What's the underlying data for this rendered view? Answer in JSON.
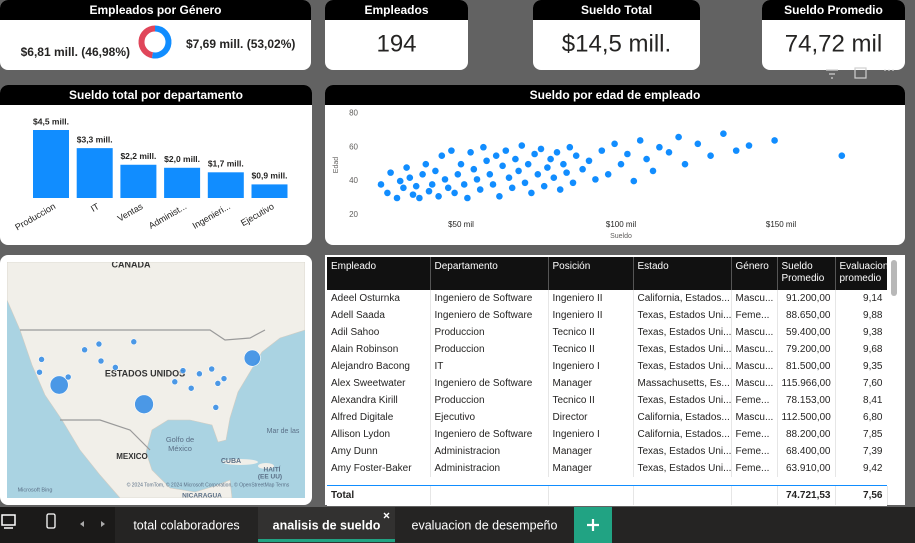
{
  "cards": [
    {
      "title": "Empleados",
      "value": "194"
    },
    {
      "title": "Sueldo Total",
      "value": "$14,5 mill."
    },
    {
      "title": "Sueldo Promedio",
      "value": "74,72 mil"
    }
  ],
  "chart_data": [
    {
      "type": "donut",
      "title": "Empleados por Género",
      "values": [
        6.81,
        7.69
      ],
      "value_labels": [
        "$6,81 mill. (46,98%)",
        "$7,69 mill. (53,02%)"
      ],
      "colors": [
        "#e0465a",
        "#118dff"
      ]
    },
    {
      "type": "bar",
      "title": "Sueldo total por departamento",
      "categories": [
        "Produccion",
        "IT",
        "Ventas",
        "Administ...",
        "Ingenieri...",
        "Ejecutivo"
      ],
      "values": [
        4.5,
        3.3,
        2.2,
        2.0,
        1.7,
        0.9
      ],
      "value_labels": [
        "$4,5 mill.",
        "$3,3 mill.",
        "$2,2 mill.",
        "$2,0 mill.",
        "$1,7 mill.",
        "$0,9 mill."
      ],
      "color": "#118dff"
    },
    {
      "type": "scatter",
      "title": "Sueldo por edad de empleado",
      "x_label": "Sueldo",
      "y_label": "Edad",
      "color": "#118dff",
      "x": [
        25000,
        27000,
        28000,
        30000,
        31000,
        32000,
        33000,
        34000,
        35000,
        36000,
        37000,
        38000,
        39000,
        40000,
        41000,
        42000,
        43000,
        44000,
        45000,
        46000,
        47000,
        48000,
        49000,
        50000,
        51000,
        52000,
        53000,
        54000,
        55000,
        56000,
        57000,
        58000,
        59000,
        60000,
        61000,
        62000,
        63000,
        64000,
        65000,
        66000,
        67000,
        68000,
        69000,
        70000,
        71000,
        72000,
        73000,
        74000,
        75000,
        76000,
        77000,
        78000,
        79000,
        80000,
        81000,
        82000,
        83000,
        84000,
        85000,
        86000,
        88000,
        90000,
        92000,
        94000,
        96000,
        98000,
        100000,
        102000,
        104000,
        106000,
        108000,
        110000,
        112000,
        115000,
        118000,
        120000,
        124000,
        128000,
        132000,
        136000,
        140000,
        148000,
        169000
      ],
      "values": [
        38,
        33,
        45,
        30,
        40,
        36,
        48,
        42,
        32,
        37,
        30,
        44,
        50,
        34,
        38,
        46,
        31,
        55,
        41,
        36,
        58,
        33,
        44,
        50,
        38,
        30,
        57,
        47,
        41,
        35,
        60,
        52,
        44,
        38,
        55,
        31,
        49,
        58,
        42,
        36,
        53,
        46,
        61,
        39,
        50,
        33,
        56,
        44,
        59,
        37,
        48,
        53,
        42,
        57,
        35,
        50,
        45,
        60,
        39,
        55,
        47,
        52,
        41,
        58,
        44,
        62,
        50,
        56,
        40,
        64,
        53,
        46,
        60,
        57,
        66,
        50,
        62,
        55,
        68,
        58,
        61,
        64,
        55
      ],
      "xlim": [
        20000,
        182500
      ],
      "ylim": [
        17,
        82
      ],
      "xticks": [
        {
          "value": 50000,
          "label": "$50 mil"
        },
        {
          "value": 100000,
          "label": "$100 mil"
        },
        {
          "value": 150000,
          "label": "$150 mil"
        }
      ],
      "yticks": [
        20,
        40,
        60,
        80
      ]
    }
  ],
  "map": {
    "color": "#3a8fe6",
    "labels": [
      "CANADA",
      "ESTADOS UNIDOS",
      "MEXICO",
      "Golfo de",
      "México",
      "Mar de las",
      "CUBA",
      "HAITÍ",
      "(EE UU)",
      "NICARAGUA",
      "© 2024 TomTom, © 2024 Microsoft Corporation, © OpenStreetMap Terms",
      "Microsoft Bing"
    ],
    "points": [
      {
        "lon": -118.2,
        "lat": 34.0,
        "size": 4.5
      },
      {
        "lon": -97.5,
        "lat": 28.0,
        "size": 4.8
      },
      {
        "lon": -71.1,
        "lat": 42.4,
        "size": 3.6
      },
      {
        "lon": -108.5,
        "lat": 46.8,
        "size": 0.5
      },
      {
        "lon": -100,
        "lat": 47.5,
        "size": 0.5
      },
      {
        "lon": -112,
        "lat": 45,
        "size": 0.5
      },
      {
        "lon": -122.5,
        "lat": 42,
        "size": 0.5
      },
      {
        "lon": -108,
        "lat": 41.5,
        "size": 0.5
      },
      {
        "lon": -123,
        "lat": 38,
        "size": 0.5
      },
      {
        "lon": -116,
        "lat": 36.5,
        "size": 0.5
      },
      {
        "lon": -104.5,
        "lat": 39.5,
        "size": 0.5
      },
      {
        "lon": -88,
        "lat": 38.5,
        "size": 0.5
      },
      {
        "lon": -84,
        "lat": 37.5,
        "size": 0.5
      },
      {
        "lon": -81,
        "lat": 39,
        "size": 0.5
      },
      {
        "lon": -78,
        "lat": 36,
        "size": 0.5
      },
      {
        "lon": -79.5,
        "lat": 34.5,
        "size": 0.5
      },
      {
        "lon": -86,
        "lat": 33,
        "size": 0.5
      },
      {
        "lon": -90,
        "lat": 35,
        "size": 0.5
      },
      {
        "lon": -80,
        "lat": 27,
        "size": 0.5
      }
    ]
  },
  "table": {
    "columns": [
      "Empleado",
      "Departamento",
      "Posición",
      "Estado",
      "Género",
      "Sueldo Promedio",
      "Evaluacion promedio"
    ],
    "rows": [
      [
        "Adeel Osturnka",
        "Ingeniero de Software",
        "Ingeniero II",
        "California, Estados...",
        "Mascu...",
        "91.200,00",
        "9,14"
      ],
      [
        "Adell Saada",
        "Ingeniero de Software",
        "Ingeniero II",
        "Texas, Estados Uni...",
        "Feme...",
        "88.650,00",
        "9,88"
      ],
      [
        "Adil Sahoo",
        "Produccion",
        "Tecnico II",
        "Texas, Estados Uni...",
        "Mascu...",
        "59.400,00",
        "9,38"
      ],
      [
        "Alain Robinson",
        "Produccion",
        "Tecnico II",
        "Texas, Estados Uni...",
        "Mascu...",
        "79.200,00",
        "9,68"
      ],
      [
        "Alejandro Bacong",
        "IT",
        "Ingeniero I",
        "Texas, Estados Uni...",
        "Mascu...",
        "81.500,00",
        "9,35"
      ],
      [
        "Alex Sweetwater",
        "Ingeniero de Software",
        "Manager",
        "Massachusetts, Es...",
        "Mascu...",
        "115.966,00",
        "7,60"
      ],
      [
        "Alexandra Kirill",
        "Produccion",
        "Tecnico II",
        "Texas, Estados Uni...",
        "Feme...",
        "78.153,00",
        "8,41"
      ],
      [
        "Alfred Digitale",
        "Ejecutivo",
        "Director",
        "California, Estados...",
        "Mascu...",
        "112.500,00",
        "6,80"
      ],
      [
        "Allison Lydon",
        "Ingeniero de Software",
        "Ingeniero I",
        "California, Estados...",
        "Feme...",
        "88.200,00",
        "7,85"
      ],
      [
        "Amy Dunn",
        "Administracion",
        "Manager",
        "Texas, Estados Uni...",
        "Feme...",
        "68.400,00",
        "7,39"
      ],
      [
        "Amy Foster-Baker",
        "Administracion",
        "Manager",
        "Texas, Estados Uni...",
        "Feme...",
        "63.910,00",
        "9,42"
      ]
    ],
    "total": [
      "Total",
      "74.721,53",
      "7,56"
    ]
  },
  "tabs": [
    "total colaboradores",
    "analisis de sueldo",
    "evaluacion de desempeño"
  ],
  "active_tab": 1
}
